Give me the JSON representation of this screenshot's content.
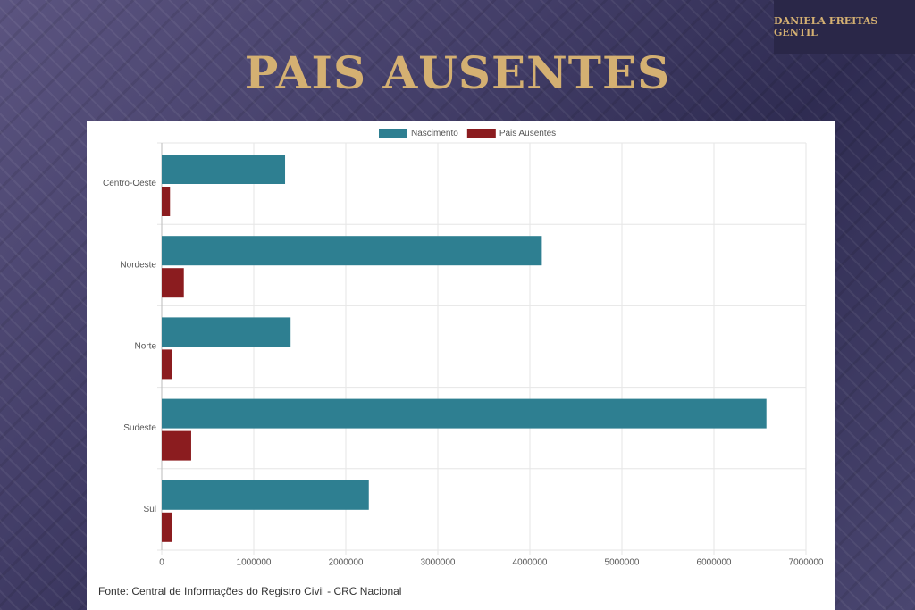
{
  "header": {
    "author": "DANIELA FREITAS GENTIL",
    "title": "PAIS AUSENTES"
  },
  "chart_data": {
    "type": "bar",
    "orientation": "horizontal",
    "categories": [
      "Centro-Oeste",
      "Nordeste",
      "Norte",
      "Sudeste",
      "Sul"
    ],
    "series": [
      {
        "name": "Nascimento",
        "color": "#2e7f91",
        "values": [
          1340000,
          4130000,
          1400000,
          6570000,
          2250000
        ]
      },
      {
        "name": "Pais Ausentes",
        "color": "#8b1c1f",
        "values": [
          90000,
          240000,
          110000,
          320000,
          110000
        ]
      }
    ],
    "xlim": [
      0,
      7000000
    ],
    "xticks": [
      0,
      1000000,
      2000000,
      3000000,
      4000000,
      5000000,
      6000000,
      7000000
    ],
    "grid": true,
    "legend": "top"
  },
  "source": "Fonte: Central de Informações do Registro Civil - CRC Nacional"
}
